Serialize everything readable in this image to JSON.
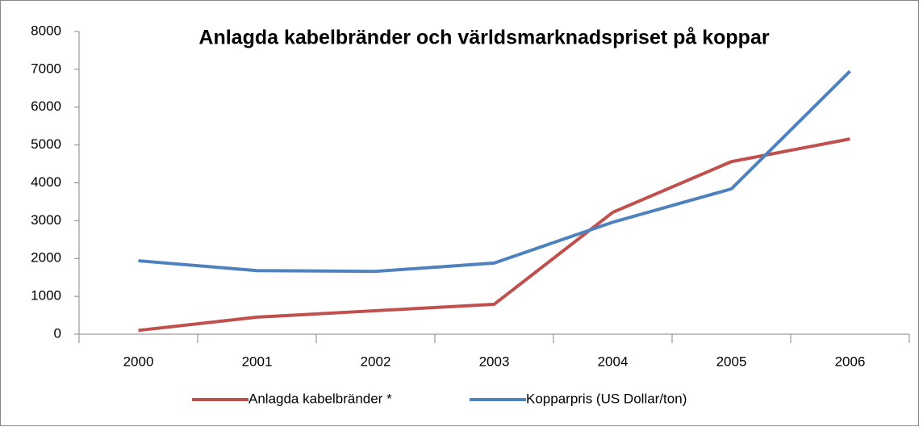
{
  "chart_data": {
    "type": "line",
    "title": "Anlagda kabelbränder och världsmarknadspriset på koppar",
    "categories": [
      "2000",
      "2001",
      "2002",
      "2003",
      "2004",
      "2005",
      "2006"
    ],
    "series": [
      {
        "name": "Anlagda kabelbränder *",
        "color": "#c0504d",
        "values": [
          100,
          450,
          620,
          790,
          3220,
          4560,
          5160
        ]
      },
      {
        "name": "Kopparpris (US Dollar/ton)",
        "color": "#4f81bd",
        "values": [
          1940,
          1680,
          1660,
          1880,
          2960,
          3840,
          6950
        ]
      }
    ],
    "ylim": [
      0,
      8000
    ],
    "yticks": [
      0,
      1000,
      2000,
      3000,
      4000,
      5000,
      6000,
      7000,
      8000
    ],
    "grid": false,
    "legend": "bottom"
  }
}
